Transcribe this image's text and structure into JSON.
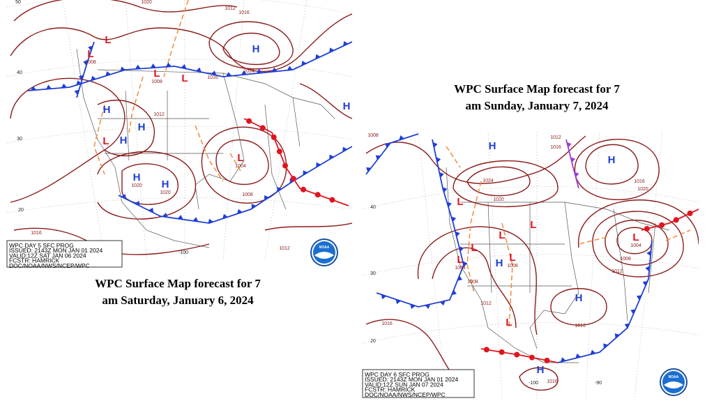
{
  "maps": [
    {
      "caption": [
        "WPC Surface Map forecast for 7",
        "am Saturday, January 6, 2024"
      ],
      "info": [
        "WPC DAY 5 SFC PROG",
        "ISSUED: 2143Z MON JAN 01 2024",
        "VALID:12Z SAT JAN 06 2024",
        "FCSTR: HAMRICK",
        "DOC/NOAA/NWS/NCEP/WPC"
      ],
      "centers": [
        {
          "letter": "L"
        },
        {
          "letter": "L",
          "value": "1008"
        },
        {
          "letter": "H"
        },
        {
          "letter": "L",
          "value": "1008"
        },
        {
          "letter": "L"
        },
        {
          "letter": "H"
        },
        {
          "letter": "H"
        },
        {
          "letter": "L"
        },
        {
          "letter": "H"
        },
        {
          "letter": "H",
          "value": "1020"
        },
        {
          "letter": "H",
          "value": "1020"
        },
        {
          "letter": "L",
          "value": "1004"
        },
        {
          "letter": "H"
        }
      ],
      "isobar_labels": [
        "1016",
        "1012",
        "1020",
        "1024",
        "1012",
        "1008",
        "1016",
        "1012",
        "1016"
      ],
      "latitudes": [
        "50",
        "40",
        "30",
        "20"
      ],
      "longitudes": [
        "-100"
      ],
      "logo": "NOAA"
    },
    {
      "caption": [
        "WPC Surface Map forecast for 7",
        "am Sunday, January 7, 2024"
      ],
      "info": [
        "WPC DAY 6 SFC PROG",
        "ISSUED: 2143Z MON JAN 01 2024",
        "VALID:12Z SUN JAN 07 2024",
        "FCSTR: HAMRICK",
        "DOC/NOAA/NWS/NCEP/WPC"
      ],
      "centers": [
        {
          "letter": "H"
        },
        {
          "letter": "H"
        },
        {
          "letter": "L"
        },
        {
          "letter": "L"
        },
        {
          "letter": "L"
        },
        {
          "letter": "L"
        },
        {
          "letter": "L",
          "value": "1004"
        },
        {
          "letter": "H"
        },
        {
          "letter": "L",
          "value": "1008"
        },
        {
          "letter": "L",
          "value": "1004"
        },
        {
          "letter": "H"
        },
        {
          "letter": "H"
        },
        {
          "letter": "L"
        }
      ],
      "isobar_labels": [
        "1008",
        "1012",
        "1016",
        "1024",
        "1020",
        "1020",
        "1016",
        "1008",
        "1012",
        "1016",
        "1016",
        "1008",
        "1012",
        "1016"
      ],
      "latitudes": [
        "40",
        "30",
        "20"
      ],
      "longitudes": [
        "-100",
        "-90"
      ],
      "logo": "NOAA"
    }
  ]
}
